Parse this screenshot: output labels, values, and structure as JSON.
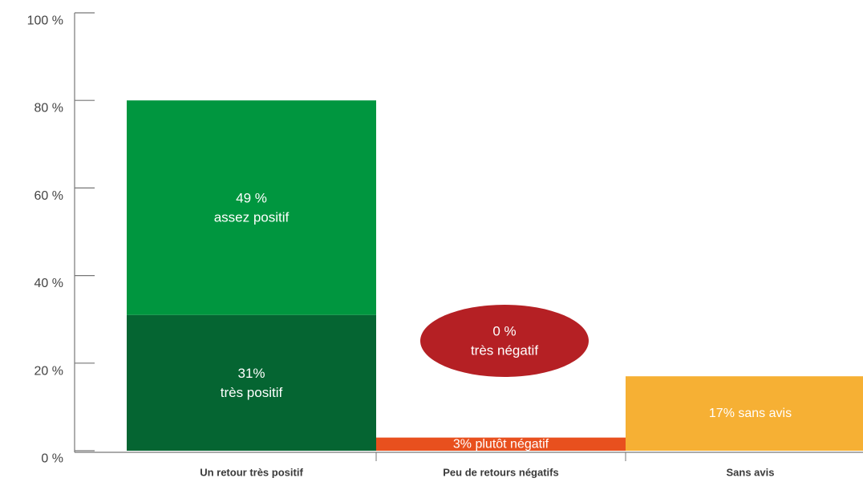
{
  "chart_data": {
    "type": "bar",
    "stacked": true,
    "ylim": [
      0,
      100
    ],
    "yticks": [
      0,
      20,
      40,
      60,
      80,
      100
    ],
    "ytick_labels": [
      "0 %",
      "20 %",
      "40 %",
      "60 %",
      "80 %",
      "100 %"
    ],
    "categories": [
      "Un retour très positif",
      "Peu de retours négatifs",
      "Sans avis"
    ],
    "segments": [
      {
        "category": 0,
        "value": 31,
        "label_lines": [
          "31%",
          "très positif"
        ],
        "color": "#056532"
      },
      {
        "category": 0,
        "value": 49,
        "label_lines": [
          "49 %",
          "assez positif"
        ],
        "color": "#00963f"
      },
      {
        "category": 1,
        "value": 3,
        "label_lines": [
          "3% plutôt négatif"
        ],
        "color": "#e8501e"
      },
      {
        "category": 2,
        "value": 17,
        "label_lines": [
          "17% sans avis"
        ],
        "color": "#f6b034"
      }
    ],
    "callout": {
      "value": 0,
      "label_lines": [
        "0 %",
        "très négatif"
      ],
      "shape": "ellipse",
      "color": "#b52024"
    }
  },
  "colors": {
    "axis": "#777777",
    "tick_text": "#444444",
    "category_text": "#3a3a3a",
    "bar_text": "#ffffff"
  }
}
